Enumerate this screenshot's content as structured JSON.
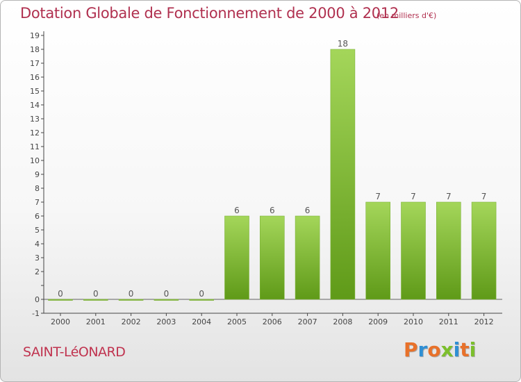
{
  "header": {
    "title": "Dotation Globale de Fonctionnement de 2000 à 2012",
    "subtitle": "(en milliers d'€)"
  },
  "footer": {
    "commune": "SAINT-LéONARD",
    "brand": "Proxiti"
  },
  "colors": {
    "title": "#b0304f",
    "bar_light": "#a4d65a",
    "bar_dark": "#5f9a18",
    "brand_letters": [
      "#e8712a",
      "#2f8fd4",
      "#e8712a",
      "#7cbf2c",
      "#2f8fd4",
      "#e8712a",
      "#7cbf2c"
    ]
  },
  "chart_data": {
    "type": "bar",
    "title": "Dotation Globale de Fonctionnement de 2000 à 2012",
    "subtitle": "(en milliers d'€)",
    "xlabel": "",
    "ylabel": "",
    "categories": [
      "2000",
      "2001",
      "2002",
      "2003",
      "2004",
      "2005",
      "2006",
      "2007",
      "2008",
      "2009",
      "2010",
      "2011",
      "2012"
    ],
    "values": [
      0,
      0,
      0,
      0,
      0,
      6,
      6,
      6,
      18,
      7,
      7,
      7,
      7
    ],
    "ylim": [
      -1,
      19
    ],
    "yticks": [
      -1,
      0,
      1,
      2,
      3,
      4,
      5,
      6,
      7,
      8,
      9,
      10,
      11,
      12,
      13,
      14,
      15,
      16,
      17,
      18,
      19
    ],
    "ytick_labels": [
      "-1",
      "0",
      "",
      "2",
      "3",
      "4",
      "5",
      "6",
      "7",
      "8",
      "9",
      "10",
      "11",
      "12",
      "13",
      "14",
      "15",
      "16",
      "17",
      "18",
      "19"
    ],
    "grid": false,
    "legend": "none"
  }
}
